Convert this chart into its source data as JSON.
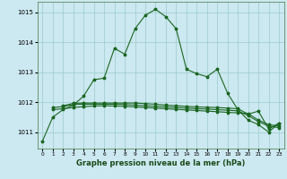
{
  "title": "Graphe pression niveau de la mer (hPa)",
  "background_color": "#cce8f0",
  "grid_color": "#99cccc",
  "line_color": "#1a6620",
  "xlim": [
    -0.5,
    23.5
  ],
  "ylim": [
    1010.45,
    1015.35
  ],
  "yticks": [
    1011,
    1012,
    1013,
    1014,
    1015
  ],
  "xticks": [
    0,
    1,
    2,
    3,
    4,
    5,
    6,
    7,
    8,
    9,
    10,
    11,
    12,
    13,
    14,
    15,
    16,
    17,
    18,
    19,
    20,
    21,
    22,
    23
  ],
  "series1_x": [
    0,
    1,
    2,
    3,
    4,
    5,
    6,
    7,
    8,
    9,
    10,
    11,
    12,
    13,
    14,
    15,
    16,
    17,
    18,
    19,
    20,
    21,
    22,
    23
  ],
  "series1_y": [
    1010.7,
    1011.5,
    1011.75,
    1011.9,
    1012.2,
    1012.75,
    1012.8,
    1013.8,
    1013.6,
    1014.45,
    1014.9,
    1015.1,
    1014.85,
    1014.45,
    1013.1,
    1012.95,
    1012.85,
    1013.1,
    1012.3,
    1011.75,
    1011.4,
    1011.25,
    1011.0,
    1011.3
  ],
  "series2_x": [
    1,
    2,
    3,
    4,
    5,
    6,
    7,
    8,
    9,
    10,
    11,
    12,
    13,
    14,
    15,
    16,
    17,
    18,
    19,
    20,
    21,
    22,
    23
  ],
  "series2_y": [
    1011.75,
    1011.78,
    1011.82,
    1011.85,
    1011.87,
    1011.88,
    1011.87,
    1011.86,
    1011.84,
    1011.82,
    1011.8,
    1011.78,
    1011.76,
    1011.74,
    1011.72,
    1011.7,
    1011.68,
    1011.66,
    1011.64,
    1011.62,
    1011.4,
    1011.25,
    1011.2
  ],
  "series3_x": [
    1,
    2,
    3,
    4,
    5,
    6,
    7,
    8,
    9,
    10,
    11,
    12,
    13,
    14,
    15,
    16,
    17,
    18,
    19,
    20,
    21,
    22,
    23
  ],
  "series3_y": [
    1011.82,
    1011.85,
    1011.92,
    1011.93,
    1011.93,
    1011.93,
    1011.93,
    1011.92,
    1011.9,
    1011.88,
    1011.86,
    1011.84,
    1011.82,
    1011.8,
    1011.78,
    1011.77,
    1011.75,
    1011.73,
    1011.71,
    1011.55,
    1011.35,
    1011.2,
    1011.15
  ],
  "series4_x": [
    2,
    3,
    4,
    5,
    6,
    7,
    8,
    9,
    10,
    11,
    12,
    13,
    14,
    15,
    16,
    17,
    18,
    19,
    20,
    21,
    22,
    23
  ],
  "series4_y": [
    1011.88,
    1011.96,
    1011.97,
    1011.97,
    1011.97,
    1011.97,
    1011.97,
    1011.97,
    1011.95,
    1011.93,
    1011.9,
    1011.88,
    1011.86,
    1011.84,
    1011.83,
    1011.82,
    1011.8,
    1011.78,
    1011.6,
    1011.7,
    1011.1,
    1011.3
  ],
  "marker_size": 2.5,
  "linewidth": 0.8
}
